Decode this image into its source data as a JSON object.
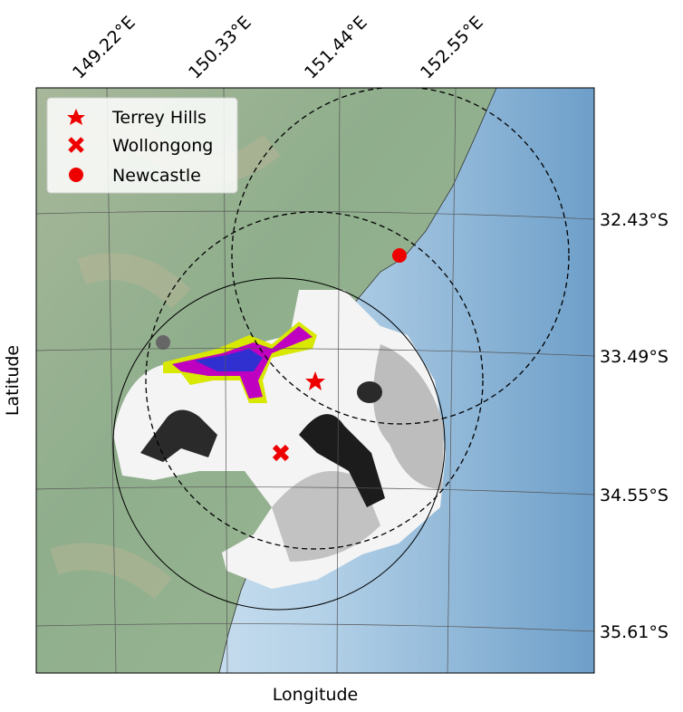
{
  "map": {
    "xlabel": "Longitude",
    "ylabel": "Latitude",
    "lon_ticks": [
      "149.22°E",
      "150.33°E",
      "151.44°E",
      "152.55°E"
    ],
    "lat_ticks": [
      "32.43°S",
      "33.49°S",
      "34.55°S",
      "35.61°S"
    ],
    "legend": [
      "Terrey Hills",
      "Wollongong",
      "Newcastle"
    ]
  }
}
